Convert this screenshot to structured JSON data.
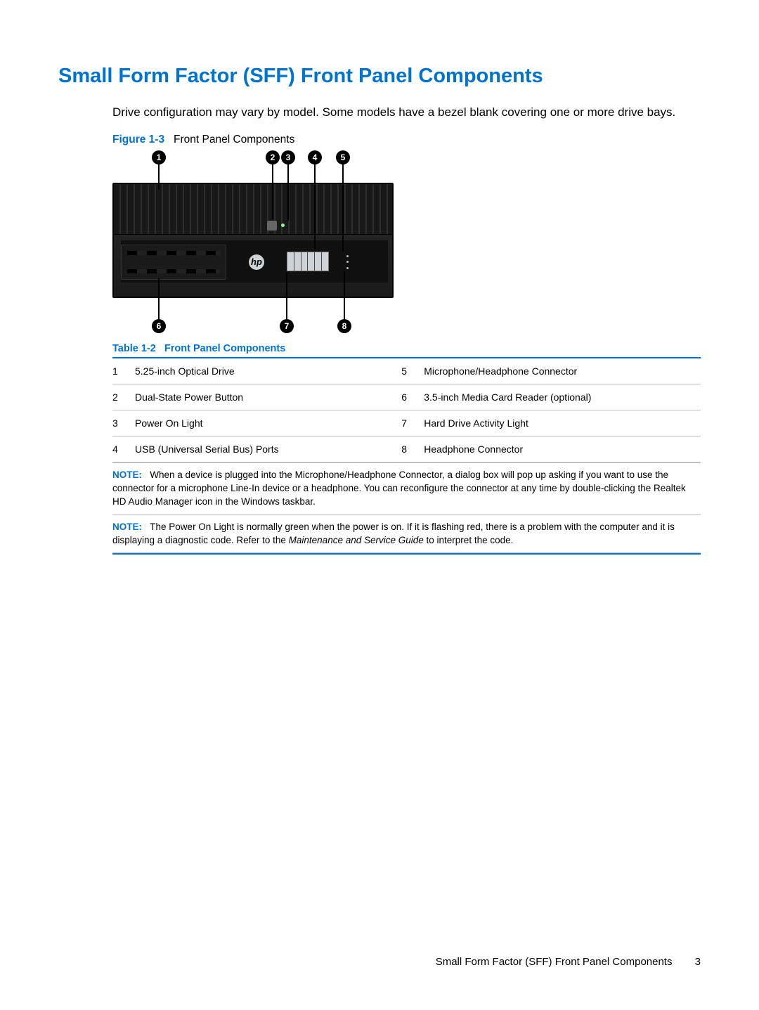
{
  "colors": {
    "accent": "#0073cf",
    "text": "#000000",
    "rule": "#bfbfbf"
  },
  "heading": "Small Form Factor (SFF) Front Panel Components",
  "intro": "Drive configuration may vary by model. Some models have a bezel blank covering one or more drive bays.",
  "figure": {
    "label": "Figure 1-3",
    "title": "Front Panel Components",
    "callout_numbers": [
      "1",
      "2",
      "3",
      "4",
      "5",
      "6",
      "7",
      "8"
    ]
  },
  "table": {
    "caption_label": "Table 1-2",
    "caption_title": "Front Panel Components",
    "rows": [
      {
        "n1": "1",
        "d1": "5.25-inch Optical Drive",
        "n2": "5",
        "d2": "Microphone/Headphone Connector"
      },
      {
        "n1": "2",
        "d1": "Dual-State Power Button",
        "n2": "6",
        "d2": "3.5-inch Media Card Reader (optional)"
      },
      {
        "n1": "3",
        "d1": "Power On Light",
        "n2": "7",
        "d2": "Hard Drive Activity Light"
      },
      {
        "n1": "4",
        "d1": "USB (Universal Serial Bus) Ports",
        "n2": "8",
        "d2": "Headphone Connector"
      }
    ]
  },
  "notes": {
    "label": "NOTE:",
    "note1": "When a device is plugged into the Microphone/Headphone Connector, a dialog box will pop up asking if you want to use the connector for a microphone Line-In device or a headphone. You can reconfigure the connector at any time by double-clicking the Realtek HD Audio Manager icon in the Windows taskbar.",
    "note2a": "The Power On Light is normally green when the power is on. If it is flashing red, there is a problem with the computer and it is displaying a diagnostic code. Refer to the ",
    "note2_italic": "Maintenance and Service Guide",
    "note2b": " to interpret the code."
  },
  "footer": {
    "section": "Small Form Factor (SFF) Front Panel Components",
    "page": "3"
  }
}
